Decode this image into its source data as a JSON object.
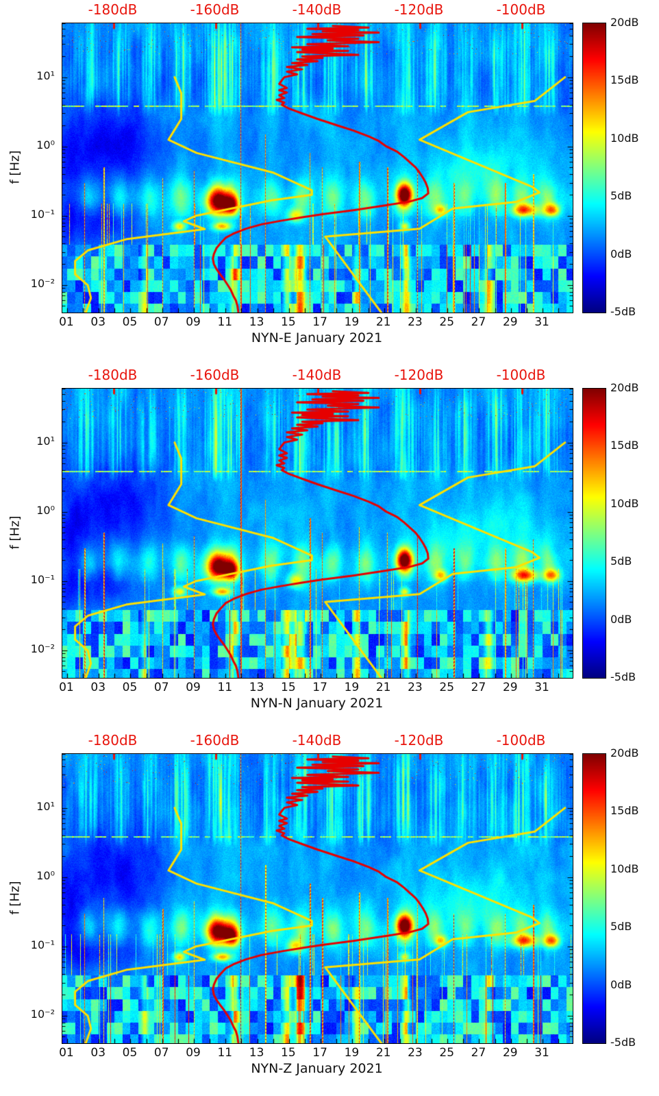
{
  "chart_data": {
    "type": "heatmap",
    "subtype": "spectrogram-with-noise-model-curves",
    "panels": [
      {
        "id": "E",
        "title": "NYN-E January 2021"
      },
      {
        "id": "N",
        "title": "NYN-N January 2021"
      },
      {
        "id": "Z",
        "title": "NYN-Z January 2021"
      }
    ],
    "x_axis": {
      "ticks": [
        "01",
        "03",
        "05",
        "07",
        "09",
        "11",
        "13",
        "15",
        "17",
        "19",
        "21",
        "23",
        "25",
        "27",
        "29",
        "31"
      ],
      "range_days": [
        0.7,
        32.9
      ]
    },
    "y_axis": {
      "label": "f [Hz]",
      "scale": "log",
      "ticks": [
        {
          "label": "10⁻²",
          "hz": 0.01
        },
        {
          "label": "10⁻¹",
          "hz": 0.1
        },
        {
          "label": "10⁰",
          "hz": 1
        },
        {
          "label": "10¹",
          "hz": 10
        }
      ],
      "range_hz": [
        0.004,
        60
      ]
    },
    "top_axis": {
      "color": "#e8140c",
      "range_db": [
        -190,
        -90
      ],
      "ticks": [
        {
          "label": "-180dB",
          "db": -180
        },
        {
          "label": "-160dB",
          "db": -160
        },
        {
          "label": "-140dB",
          "db": -140
        },
        {
          "label": "-120dB",
          "db": -120
        },
        {
          "label": "-100dB",
          "db": -100
        }
      ]
    },
    "colorbar": {
      "colormap": "jet",
      "range_db": [
        -5,
        20
      ],
      "ticks": [
        {
          "label": "20dB",
          "db": 20
        },
        {
          "label": "15dB",
          "db": 15
        },
        {
          "label": "10dB",
          "db": 10
        },
        {
          "label": "5dB",
          "db": 5
        },
        {
          "label": "0dB",
          "db": 0
        },
        {
          "label": "-5dB",
          "db": -5
        }
      ]
    },
    "curves": {
      "red_color": "#e60000",
      "yellow_color": "#ffe100",
      "median_psd_red": [
        [
          55,
          -137
        ],
        [
          52,
          -130
        ],
        [
          50,
          -142
        ],
        [
          48,
          -132
        ],
        [
          46,
          -139
        ],
        [
          44,
          -128
        ],
        [
          42,
          -141
        ],
        [
          40,
          -131
        ],
        [
          38,
          -144
        ],
        [
          36,
          -132
        ],
        [
          34,
          -138
        ],
        [
          32,
          -128
        ],
        [
          30,
          -142
        ],
        [
          28,
          -134
        ],
        [
          27,
          -145
        ],
        [
          26,
          -137
        ],
        [
          25,
          -143
        ],
        [
          24,
          -134
        ],
        [
          23,
          -144
        ],
        [
          22,
          -138
        ],
        [
          21,
          -132
        ],
        [
          20,
          -143
        ],
        [
          19,
          -139
        ],
        [
          18,
          -144
        ],
        [
          17,
          -140
        ],
        [
          16,
          -145
        ],
        [
          15,
          -142
        ],
        [
          14,
          -146
        ],
        [
          13,
          -143
        ],
        [
          12,
          -146
        ],
        [
          11,
          -144
        ],
        [
          10,
          -146.5
        ],
        [
          9,
          -147
        ],
        [
          8,
          -147.5
        ],
        [
          7,
          -146
        ],
        [
          6.5,
          -147.5
        ],
        [
          6,
          -146
        ],
        [
          5.5,
          -147.5
        ],
        [
          5,
          -146.5
        ],
        [
          4.7,
          -148
        ],
        [
          4.3,
          -146.5
        ],
        [
          4,
          -147
        ],
        [
          3.5,
          -145.5
        ],
        [
          3,
          -143
        ],
        [
          2.5,
          -140
        ],
        [
          2,
          -136
        ],
        [
          1.7,
          -133
        ],
        [
          1.4,
          -130
        ],
        [
          1.2,
          -128
        ],
        [
          1,
          -126.5
        ],
        [
          0.85,
          -124.5
        ],
        [
          0.7,
          -123
        ],
        [
          0.6,
          -122
        ],
        [
          0.5,
          -120.8
        ],
        [
          0.42,
          -120
        ],
        [
          0.35,
          -119.3
        ],
        [
          0.3,
          -118.8
        ],
        [
          0.25,
          -118.4
        ],
        [
          0.21,
          -118.3
        ],
        [
          0.18,
          -119.5
        ],
        [
          0.16,
          -122
        ],
        [
          0.14,
          -127
        ],
        [
          0.12,
          -133
        ],
        [
          0.105,
          -139
        ],
        [
          0.095,
          -143
        ],
        [
          0.085,
          -147
        ],
        [
          0.075,
          -151
        ],
        [
          0.065,
          -154
        ],
        [
          0.055,
          -156.5
        ],
        [
          0.048,
          -158
        ],
        [
          0.04,
          -159
        ],
        [
          0.034,
          -159.8
        ],
        [
          0.028,
          -160.3
        ],
        [
          0.024,
          -160.5
        ],
        [
          0.02,
          -160.3
        ],
        [
          0.017,
          -159.8
        ],
        [
          0.014,
          -159
        ],
        [
          0.012,
          -158.3
        ],
        [
          0.01,
          -157.6
        ],
        [
          0.0085,
          -157
        ],
        [
          0.007,
          -156.5
        ],
        [
          0.006,
          -156
        ],
        [
          0.005,
          -155.7
        ],
        [
          0.004,
          -155.5
        ]
      ],
      "low_noise_model_yellow": [
        [
          10,
          -168
        ],
        [
          5.88,
          -166.7
        ],
        [
          2.5,
          -166.7
        ],
        [
          1.25,
          -169.2
        ],
        [
          0.806,
          -163.7
        ],
        [
          0.417,
          -148.6
        ],
        [
          0.233,
          -141.1
        ],
        [
          0.2,
          -141.1
        ],
        [
          0.167,
          -149
        ],
        [
          0.1,
          -163.8
        ],
        [
          0.0833,
          -166.2
        ],
        [
          0.0641,
          -162.1
        ],
        [
          0.0457,
          -177.5
        ],
        [
          0.0316,
          -185
        ],
        [
          0.0222,
          -187.5
        ],
        [
          0.0143,
          -187.5
        ],
        [
          0.0099,
          -185
        ],
        [
          0.0065,
          -184.4
        ],
        [
          0.004,
          -185.4
        ]
      ],
      "high_noise_model_yellow": [
        [
          10,
          -91.5
        ],
        [
          4.55,
          -97.4
        ],
        [
          3.13,
          -110.5
        ],
        [
          1.25,
          -120
        ],
        [
          0.263,
          -98
        ],
        [
          0.217,
          -96.5
        ],
        [
          0.159,
          -101
        ],
        [
          0.127,
          -113.5
        ],
        [
          0.0649,
          -120
        ],
        [
          0.05,
          -138.5
        ],
        [
          0.004,
          -127.5
        ],
        [
          0.00282,
          -126
        ]
      ]
    },
    "spectrogram_features": {
      "storm_days": [
        [
          2.3,
          0.5
        ],
        [
          4.3,
          0.55
        ],
        [
          6.2,
          0.5
        ],
        [
          8.2,
          0.75
        ],
        [
          10.4,
          0.9
        ],
        [
          11.4,
          0.85
        ],
        [
          13.9,
          0.7
        ],
        [
          15.8,
          0.8
        ],
        [
          17.8,
          0.75
        ],
        [
          19.8,
          0.7
        ],
        [
          22.3,
          0.95
        ],
        [
          24.2,
          0.7
        ],
        [
          26.1,
          0.65
        ],
        [
          28.1,
          0.7
        ],
        [
          29.7,
          0.8
        ],
        [
          31.3,
          0.7
        ]
      ],
      "events": [
        [
          10.6,
          0.16,
          15,
          0.8,
          0.18
        ],
        [
          11.4,
          0.14,
          11,
          0.45,
          0.13
        ],
        [
          22.3,
          0.2,
          16,
          0.5,
          0.15
        ],
        [
          29.9,
          0.12,
          11,
          0.8,
          0.09
        ],
        [
          31.6,
          0.12,
          10,
          0.5,
          0.09
        ],
        [
          24.6,
          0.12,
          8,
          0.4,
          0.08
        ],
        [
          8.1,
          0.07,
          9,
          0.4,
          0.07
        ],
        [
          10.8,
          0.07,
          10,
          0.6,
          0.06
        ],
        [
          22.3,
          0.07,
          8,
          0.3,
          0.06
        ],
        [
          15.4,
          0.1,
          8,
          0.5,
          0.1
        ],
        [
          27.0,
          0.5,
          2.5,
          3.5,
          0.45
        ]
      ],
      "quiet": [
        [
          4.2,
          3.2,
          0.05,
          0.6,
          4.2
        ],
        [
          3.3,
          2.6,
          -1.05,
          0.35,
          3.0
        ],
        [
          1.2,
          1.2,
          -0.6,
          0.8,
          3.0
        ]
      ],
      "hot_columns": [
        [
          15.7,
          14,
          0.35
        ],
        [
          14.9,
          9,
          0.25
        ],
        [
          22.4,
          10,
          0.22
        ],
        [
          11.6,
          10,
          0.25
        ],
        [
          19.3,
          7,
          0.2
        ],
        [
          27.6,
          7,
          0.25
        ],
        [
          5.9,
          6,
          0.2
        ]
      ],
      "spikes": [
        [
          3.3,
          0.5
        ],
        [
          7.0,
          0.35
        ],
        [
          9.0,
          0.45
        ],
        [
          11.95,
          60
        ],
        [
          13.5,
          1.5
        ],
        [
          16.3,
          0.8
        ],
        [
          17.1,
          0.5
        ],
        [
          19.4,
          0.6
        ],
        [
          21.2,
          0.5
        ],
        [
          23.1,
          0.45
        ],
        [
          25.4,
          0.3
        ],
        [
          28.6,
          0.3
        ],
        [
          30.4,
          0.4
        ],
        [
          2.1,
          0.3
        ]
      ]
    }
  }
}
